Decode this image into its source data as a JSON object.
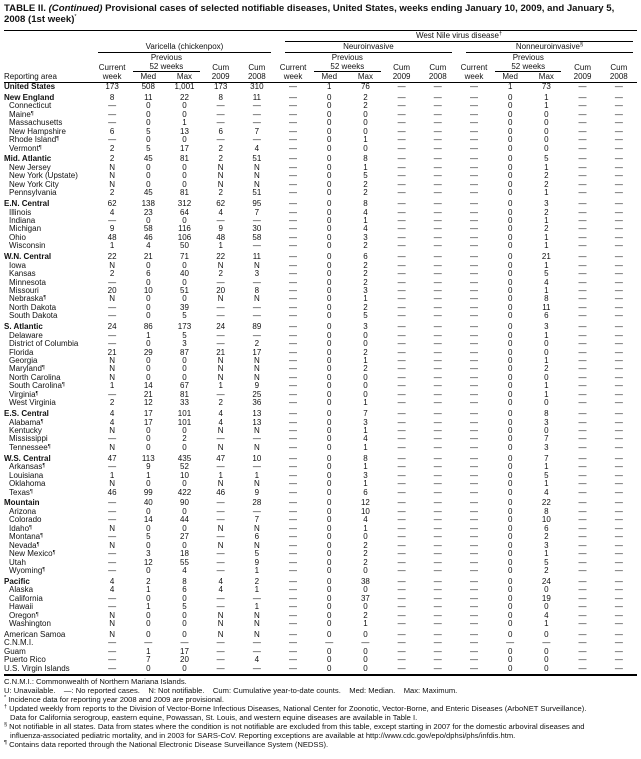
{
  "title": {
    "prefix": "TABLE II. ",
    "italic": "(Continued)",
    "text": " Provisional cases of selected notifiable diseases, United States, weeks ending January 10, 2009, and January 5, 2008 (1st week)",
    "mark": "*"
  },
  "headers": {
    "wnv": "West Nile virus disease",
    "wnv_mark": "†",
    "varicella": "Varicella (chickenpox)",
    "neuro": "Neuroinvasive",
    "nonneuro": "Nonneuroinvasive",
    "nonneuro_mark": "§",
    "previous": "Previous",
    "weeks52": "52 weeks",
    "current": "Current",
    "week": "week",
    "med": "Med",
    "max": "Max",
    "cum": "Cum",
    "y2009": "2009",
    "y2008": "2008",
    "reporting_area": "Reporting area"
  },
  "rows": [
    {
      "a": "United States",
      "b": 1,
      "v": [
        "173",
        "508",
        "1,001",
        "173",
        "310",
        "—",
        "1",
        "76",
        "—",
        "—",
        "—",
        "1",
        "73",
        "—",
        "—"
      ]
    },
    {
      "a": "New England",
      "b": 1,
      "v": [
        "8",
        "11",
        "22",
        "8",
        "11",
        "—",
        "0",
        "2",
        "—",
        "—",
        "—",
        "0",
        "1",
        "—",
        "—"
      ]
    },
    {
      "a": "Connecticut",
      "v": [
        "—",
        "0",
        "0",
        "—",
        "—",
        "—",
        "0",
        "2",
        "—",
        "—",
        "—",
        "0",
        "1",
        "—",
        "—"
      ]
    },
    {
      "a": "Maine",
      "f": "¶",
      "v": [
        "—",
        "0",
        "0",
        "—",
        "—",
        "—",
        "0",
        "0",
        "—",
        "—",
        "—",
        "0",
        "0",
        "—",
        "—"
      ]
    },
    {
      "a": "Massachusetts",
      "v": [
        "—",
        "0",
        "1",
        "—",
        "—",
        "—",
        "0",
        "0",
        "—",
        "—",
        "—",
        "0",
        "0",
        "—",
        "—"
      ]
    },
    {
      "a": "New Hampshire",
      "v": [
        "6",
        "5",
        "13",
        "6",
        "7",
        "—",
        "0",
        "0",
        "—",
        "—",
        "—",
        "0",
        "0",
        "—",
        "—"
      ]
    },
    {
      "a": "Rhode Island",
      "f": "¶",
      "v": [
        "—",
        "0",
        "0",
        "—",
        "—",
        "—",
        "0",
        "1",
        "—",
        "—",
        "—",
        "0",
        "0",
        "—",
        "—"
      ]
    },
    {
      "a": "Vermont",
      "f": "¶",
      "v": [
        "2",
        "5",
        "17",
        "2",
        "4",
        "—",
        "0",
        "0",
        "—",
        "—",
        "—",
        "0",
        "0",
        "—",
        "—"
      ]
    },
    {
      "a": "Mid. Atlantic",
      "b": 1,
      "v": [
        "2",
        "45",
        "81",
        "2",
        "51",
        "—",
        "0",
        "8",
        "—",
        "—",
        "—",
        "0",
        "5",
        "—",
        "—"
      ]
    },
    {
      "a": "New Jersey",
      "v": [
        "N",
        "0",
        "0",
        "N",
        "N",
        "—",
        "0",
        "1",
        "—",
        "—",
        "—",
        "0",
        "1",
        "—",
        "—"
      ]
    },
    {
      "a": "New York (Upstate)",
      "v": [
        "N",
        "0",
        "0",
        "N",
        "N",
        "—",
        "0",
        "5",
        "—",
        "—",
        "—",
        "0",
        "2",
        "—",
        "—"
      ]
    },
    {
      "a": "New York City",
      "v": [
        "N",
        "0",
        "0",
        "N",
        "N",
        "—",
        "0",
        "2",
        "—",
        "—",
        "—",
        "0",
        "2",
        "—",
        "—"
      ]
    },
    {
      "a": "Pennsylvania",
      "v": [
        "2",
        "45",
        "81",
        "2",
        "51",
        "—",
        "0",
        "2",
        "—",
        "—",
        "—",
        "0",
        "1",
        "—",
        "—"
      ]
    },
    {
      "a": "E.N. Central",
      "b": 1,
      "v": [
        "62",
        "138",
        "312",
        "62",
        "95",
        "—",
        "0",
        "8",
        "—",
        "—",
        "—",
        "0",
        "3",
        "—",
        "—"
      ]
    },
    {
      "a": "Illinois",
      "v": [
        "4",
        "23",
        "64",
        "4",
        "7",
        "—",
        "0",
        "4",
        "—",
        "—",
        "—",
        "0",
        "2",
        "—",
        "—"
      ]
    },
    {
      "a": "Indiana",
      "v": [
        "—",
        "0",
        "0",
        "—",
        "—",
        "—",
        "0",
        "1",
        "—",
        "—",
        "—",
        "0",
        "1",
        "—",
        "—"
      ]
    },
    {
      "a": "Michigan",
      "v": [
        "9",
        "58",
        "116",
        "9",
        "30",
        "—",
        "0",
        "4",
        "—",
        "—",
        "—",
        "0",
        "2",
        "—",
        "—"
      ]
    },
    {
      "a": "Ohio",
      "v": [
        "48",
        "46",
        "106",
        "48",
        "58",
        "—",
        "0",
        "3",
        "—",
        "—",
        "—",
        "0",
        "1",
        "—",
        "—"
      ]
    },
    {
      "a": "Wisconsin",
      "v": [
        "1",
        "4",
        "50",
        "1",
        "—",
        "—",
        "0",
        "2",
        "—",
        "—",
        "—",
        "0",
        "1",
        "—",
        "—"
      ]
    },
    {
      "a": "W.N. Central",
      "b": 1,
      "v": [
        "22",
        "21",
        "71",
        "22",
        "11",
        "—",
        "0",
        "6",
        "—",
        "—",
        "—",
        "0",
        "21",
        "—",
        "—"
      ]
    },
    {
      "a": "Iowa",
      "v": [
        "N",
        "0",
        "0",
        "N",
        "N",
        "—",
        "0",
        "2",
        "—",
        "—",
        "—",
        "0",
        "1",
        "—",
        "—"
      ]
    },
    {
      "a": "Kansas",
      "v": [
        "2",
        "6",
        "40",
        "2",
        "3",
        "—",
        "0",
        "2",
        "—",
        "—",
        "—",
        "0",
        "5",
        "—",
        "—"
      ]
    },
    {
      "a": "Minnesota",
      "v": [
        "—",
        "0",
        "0",
        "—",
        "—",
        "—",
        "0",
        "2",
        "—",
        "—",
        "—",
        "0",
        "4",
        "—",
        "—"
      ]
    },
    {
      "a": "Missouri",
      "v": [
        "20",
        "10",
        "51",
        "20",
        "8",
        "—",
        "0",
        "3",
        "—",
        "—",
        "—",
        "0",
        "1",
        "—",
        "—"
      ]
    },
    {
      "a": "Nebraska",
      "f": "¶",
      "v": [
        "N",
        "0",
        "0",
        "N",
        "N",
        "—",
        "0",
        "1",
        "—",
        "—",
        "—",
        "0",
        "8",
        "—",
        "—"
      ]
    },
    {
      "a": "North Dakota",
      "v": [
        "—",
        "0",
        "39",
        "—",
        "—",
        "—",
        "0",
        "2",
        "—",
        "—",
        "—",
        "0",
        "11",
        "—",
        "—"
      ]
    },
    {
      "a": "South Dakota",
      "v": [
        "—",
        "0",
        "5",
        "—",
        "—",
        "—",
        "0",
        "5",
        "—",
        "—",
        "—",
        "0",
        "6",
        "—",
        "—"
      ]
    },
    {
      "a": "S. Atlantic",
      "b": 1,
      "v": [
        "24",
        "86",
        "173",
        "24",
        "89",
        "—",
        "0",
        "3",
        "—",
        "—",
        "—",
        "0",
        "3",
        "—",
        "—"
      ]
    },
    {
      "a": "Delaware",
      "v": [
        "—",
        "1",
        "5",
        "—",
        "—",
        "—",
        "0",
        "0",
        "—",
        "—",
        "—",
        "0",
        "1",
        "—",
        "—"
      ]
    },
    {
      "a": "District of Columbia",
      "v": [
        "—",
        "0",
        "3",
        "—",
        "2",
        "—",
        "0",
        "0",
        "—",
        "—",
        "—",
        "0",
        "0",
        "—",
        "—"
      ]
    },
    {
      "a": "Florida",
      "v": [
        "21",
        "29",
        "87",
        "21",
        "17",
        "—",
        "0",
        "2",
        "—",
        "—",
        "—",
        "0",
        "0",
        "—",
        "—"
      ]
    },
    {
      "a": "Georgia",
      "v": [
        "N",
        "0",
        "0",
        "N",
        "N",
        "—",
        "0",
        "1",
        "—",
        "—",
        "—",
        "0",
        "1",
        "—",
        "—"
      ]
    },
    {
      "a": "Maryland",
      "f": "¶",
      "v": [
        "N",
        "0",
        "0",
        "N",
        "N",
        "—",
        "0",
        "2",
        "—",
        "—",
        "—",
        "0",
        "2",
        "—",
        "—"
      ]
    },
    {
      "a": "North Carolina",
      "v": [
        "N",
        "0",
        "0",
        "N",
        "N",
        "—",
        "0",
        "0",
        "—",
        "—",
        "—",
        "0",
        "0",
        "—",
        "—"
      ]
    },
    {
      "a": "South Carolina",
      "f": "¶",
      "v": [
        "1",
        "14",
        "67",
        "1",
        "9",
        "—",
        "0",
        "0",
        "—",
        "—",
        "—",
        "0",
        "1",
        "—",
        "—"
      ]
    },
    {
      "a": "Virginia",
      "f": "¶",
      "v": [
        "—",
        "21",
        "81",
        "—",
        "25",
        "—",
        "0",
        "0",
        "—",
        "—",
        "—",
        "0",
        "1",
        "—",
        "—"
      ]
    },
    {
      "a": "West Virginia",
      "v": [
        "2",
        "12",
        "33",
        "2",
        "36",
        "—",
        "0",
        "1",
        "—",
        "—",
        "—",
        "0",
        "0",
        "—",
        "—"
      ]
    },
    {
      "a": "E.S. Central",
      "b": 1,
      "v": [
        "4",
        "17",
        "101",
        "4",
        "13",
        "—",
        "0",
        "7",
        "—",
        "—",
        "—",
        "0",
        "8",
        "—",
        "—"
      ]
    },
    {
      "a": "Alabama",
      "f": "¶",
      "v": [
        "4",
        "17",
        "101",
        "4",
        "13",
        "—",
        "0",
        "3",
        "—",
        "—",
        "—",
        "0",
        "3",
        "—",
        "—"
      ]
    },
    {
      "a": "Kentucky",
      "v": [
        "N",
        "0",
        "0",
        "N",
        "N",
        "—",
        "0",
        "1",
        "—",
        "—",
        "—",
        "0",
        "0",
        "—",
        "—"
      ]
    },
    {
      "a": "Mississippi",
      "v": [
        "—",
        "0",
        "2",
        "—",
        "—",
        "—",
        "0",
        "4",
        "—",
        "—",
        "—",
        "0",
        "7",
        "—",
        "—"
      ]
    },
    {
      "a": "Tennessee",
      "f": "¶",
      "v": [
        "N",
        "0",
        "0",
        "N",
        "N",
        "—",
        "0",
        "1",
        "—",
        "—",
        "—",
        "0",
        "3",
        "—",
        "—"
      ]
    },
    {
      "a": "W.S. Central",
      "b": 1,
      "v": [
        "47",
        "113",
        "435",
        "47",
        "10",
        "—",
        "0",
        "8",
        "—",
        "—",
        "—",
        "0",
        "7",
        "—",
        "—"
      ]
    },
    {
      "a": "Arkansas",
      "f": "¶",
      "v": [
        "—",
        "9",
        "52",
        "—",
        "—",
        "—",
        "0",
        "1",
        "—",
        "—",
        "—",
        "0",
        "1",
        "—",
        "—"
      ]
    },
    {
      "a": "Louisiana",
      "v": [
        "1",
        "1",
        "10",
        "1",
        "1",
        "—",
        "0",
        "3",
        "—",
        "—",
        "—",
        "0",
        "5",
        "—",
        "—"
      ]
    },
    {
      "a": "Oklahoma",
      "v": [
        "N",
        "0",
        "0",
        "N",
        "N",
        "—",
        "0",
        "1",
        "—",
        "—",
        "—",
        "0",
        "1",
        "—",
        "—"
      ]
    },
    {
      "a": "Texas",
      "f": "¶",
      "v": [
        "46",
        "99",
        "422",
        "46",
        "9",
        "—",
        "0",
        "6",
        "—",
        "—",
        "—",
        "0",
        "4",
        "—",
        "—"
      ]
    },
    {
      "a": "Mountain",
      "b": 1,
      "v": [
        "—",
        "40",
        "90",
        "—",
        "28",
        "—",
        "0",
        "12",
        "—",
        "—",
        "—",
        "0",
        "22",
        "—",
        "—"
      ]
    },
    {
      "a": "Arizona",
      "v": [
        "—",
        "0",
        "0",
        "—",
        "—",
        "—",
        "0",
        "10",
        "—",
        "—",
        "—",
        "0",
        "8",
        "—",
        "—"
      ]
    },
    {
      "a": "Colorado",
      "v": [
        "—",
        "14",
        "44",
        "—",
        "7",
        "—",
        "0",
        "4",
        "—",
        "—",
        "—",
        "0",
        "10",
        "—",
        "—"
      ]
    },
    {
      "a": "Idaho",
      "f": "¶",
      "v": [
        "N",
        "0",
        "0",
        "N",
        "N",
        "—",
        "0",
        "1",
        "—",
        "—",
        "—",
        "0",
        "6",
        "—",
        "—"
      ]
    },
    {
      "a": "Montana",
      "f": "¶",
      "v": [
        "—",
        "5",
        "27",
        "—",
        "6",
        "—",
        "0",
        "0",
        "—",
        "—",
        "—",
        "0",
        "2",
        "—",
        "—"
      ]
    },
    {
      "a": "Nevada",
      "f": "¶",
      "v": [
        "N",
        "0",
        "0",
        "N",
        "N",
        "—",
        "0",
        "2",
        "—",
        "—",
        "—",
        "0",
        "3",
        "—",
        "—"
      ]
    },
    {
      "a": "New Mexico",
      "f": "¶",
      "v": [
        "—",
        "3",
        "18",
        "—",
        "5",
        "—",
        "0",
        "2",
        "—",
        "—",
        "—",
        "0",
        "1",
        "—",
        "—"
      ]
    },
    {
      "a": "Utah",
      "v": [
        "—",
        "12",
        "55",
        "—",
        "9",
        "—",
        "0",
        "2",
        "—",
        "—",
        "—",
        "0",
        "5",
        "—",
        "—"
      ]
    },
    {
      "a": "Wyoming",
      "f": "¶",
      "v": [
        "—",
        "0",
        "4",
        "—",
        "1",
        "—",
        "0",
        "0",
        "—",
        "—",
        "—",
        "0",
        "2",
        "—",
        "—"
      ]
    },
    {
      "a": "Pacific",
      "b": 1,
      "v": [
        "4",
        "2",
        "8",
        "4",
        "2",
        "—",
        "0",
        "38",
        "—",
        "—",
        "—",
        "0",
        "24",
        "—",
        "—"
      ]
    },
    {
      "a": "Alaska",
      "v": [
        "4",
        "1",
        "6",
        "4",
        "1",
        "—",
        "0",
        "0",
        "—",
        "—",
        "—",
        "0",
        "0",
        "—",
        "—"
      ]
    },
    {
      "a": "California",
      "v": [
        "—",
        "0",
        "0",
        "—",
        "—",
        "—",
        "0",
        "37",
        "—",
        "—",
        "—",
        "0",
        "19",
        "—",
        "—"
      ]
    },
    {
      "a": "Hawaii",
      "v": [
        "—",
        "1",
        "5",
        "—",
        "1",
        "—",
        "0",
        "0",
        "—",
        "—",
        "—",
        "0",
        "0",
        "—",
        "—"
      ]
    },
    {
      "a": "Oregon",
      "f": "¶",
      "v": [
        "N",
        "0",
        "0",
        "N",
        "N",
        "—",
        "0",
        "2",
        "—",
        "—",
        "—",
        "0",
        "4",
        "—",
        "—"
      ]
    },
    {
      "a": "Washington",
      "v": [
        "N",
        "0",
        "0",
        "N",
        "N",
        "—",
        "0",
        "1",
        "—",
        "—",
        "—",
        "0",
        "1",
        "—",
        "—"
      ]
    },
    {
      "a": "American Samoa",
      "t": 1,
      "v": [
        "N",
        "0",
        "0",
        "N",
        "N",
        "—",
        "0",
        "0",
        "—",
        "—",
        "—",
        "0",
        "0",
        "—",
        "—"
      ]
    },
    {
      "a": "C.N.M.I.",
      "t": 2,
      "v": [
        "—",
        "—",
        "—",
        "—",
        "—",
        "—",
        "—",
        "—",
        "—",
        "—",
        "—",
        "—",
        "—",
        "—",
        "—"
      ]
    },
    {
      "a": "Guam",
      "t": 2,
      "v": [
        "—",
        "1",
        "17",
        "—",
        "—",
        "—",
        "0",
        "0",
        "—",
        "—",
        "—",
        "0",
        "0",
        "—",
        "—"
      ]
    },
    {
      "a": "Puerto Rico",
      "t": 2,
      "v": [
        "—",
        "7",
        "20",
        "—",
        "4",
        "—",
        "0",
        "0",
        "—",
        "—",
        "—",
        "0",
        "0",
        "—",
        "—"
      ]
    },
    {
      "a": "U.S. Virgin Islands",
      "t": 2,
      "v": [
        "—",
        "0",
        "0",
        "—",
        "—",
        "—",
        "0",
        "0",
        "—",
        "—",
        "—",
        "0",
        "0",
        "—",
        "—"
      ]
    }
  ],
  "footnotes": [
    {
      "text": "C.N.M.I.: Commonwealth of Northern Mariana Islands."
    },
    {
      "text": "U: Unavailable.    —: No reported cases.    N: Not notifiable.    Cum: Cumulative year-to-date counts.    Med: Median.    Max: Maximum."
    },
    {
      "mark": "*",
      "text": " Incidence data for reporting year 2008 and 2009 are provisional."
    },
    {
      "mark": "†",
      "text": " Updated weekly from reports to the Division of Vector-Borne Infectious Diseases, National Center for Zoonotic, Vector-Borne, and Enteric Diseases (ArboNET Surveillance).",
      "cont": "Data for California serogroup, eastern equine, Powassan, St. Louis, and western equine diseases are available in Table I."
    },
    {
      "mark": "§",
      "text": " Not notifiable in all states. Data from states where the condition is not notifiable are excluded from this table, except starting in 2007 for the domestic arboviral diseases and",
      "cont": "influenza-associated pediatric mortality, and in 2003 for SARS-CoV. Reporting exceptions are available at http://www.cdc.gov/epo/dphsi/phs/infdis.htm."
    },
    {
      "mark": "¶",
      "text": " Contains data reported through the National Electronic Disease Surveillance System (NEDSS)."
    }
  ]
}
